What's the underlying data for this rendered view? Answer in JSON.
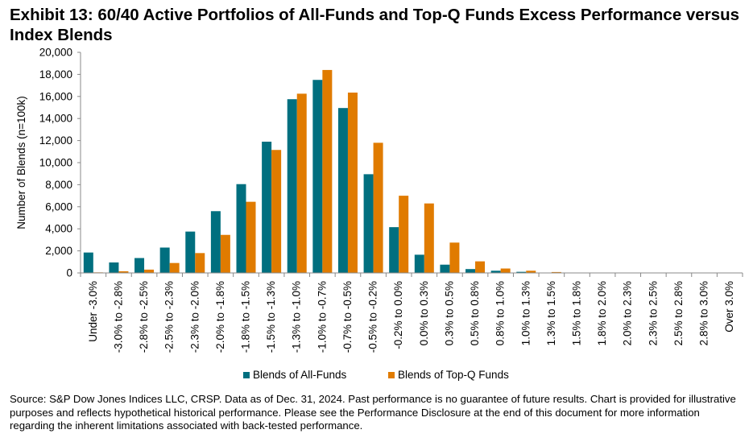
{
  "title": "Exhibit 13: 60/40 Active Portfolios of All-Funds and Top-Q Funds Excess Performance versus Index Blends",
  "source": "Source: S&P Dow Jones Indices LLC, CRSP.  Data as of Dec. 31, 2024.  Past performance is no guarantee of future results.  Chart is provided for illustrative purposes and reflects hypothetical historical performance.  Please see the Performance Disclosure at the end of this document for more information regarding the inherent limitations associated with back-tested performance.",
  "chart_data": {
    "type": "bar",
    "title": "Exhibit 13: 60/40 Active Portfolios of All-Funds and Top-Q Funds Excess Performance versus Index Blends",
    "ylabel": "Number of Blends (n=100k)",
    "xlabel": "",
    "ylim": [
      0,
      20000
    ],
    "yticks": [
      0,
      2000,
      4000,
      6000,
      8000,
      10000,
      12000,
      14000,
      16000,
      18000,
      20000
    ],
    "ytick_labels": [
      "0",
      "2,000",
      "4,000",
      "6,000",
      "8,000",
      "10,000",
      "12,000",
      "14,000",
      "16,000",
      "18,000",
      "20,000"
    ],
    "grid": false,
    "legend_position": "bottom",
    "categories": [
      "Under -3.0%",
      "-3.0% to -2.8%",
      "-2.8% to -2.5%",
      "-2.5% to -2.3%",
      "-2.3% to -2.0%",
      "-2.0% to -1.8%",
      "-1.8% to -1.5%",
      "-1.5% to -1.3%",
      "-1.3% to -1.0%",
      "-1.0% to -0.7%",
      "-0.7% to -0.5%",
      "-0.5% to -0.2%",
      "-0.2% to 0.0%",
      "0.0% to 0.3%",
      "0.3% to 0.5%",
      "0.5% to 0.8%",
      "0.8% to 1.0%",
      "1.0% to 1.3%",
      "1.3% to 1.5%",
      "1.5% to 1.8%",
      "1.8% to 2.0%",
      "2.0% to 2.3%",
      "2.3% to 2.5%",
      "2.5% to 2.8%",
      "2.8% to 3.0%",
      "Over 3.0%"
    ],
    "series": [
      {
        "name": "Blends of All-Funds",
        "color": "#006f7f",
        "values": [
          1850,
          950,
          1350,
          2300,
          3750,
          5600,
          8050,
          11900,
          15750,
          17500,
          14950,
          8950,
          4150,
          1650,
          750,
          350,
          200,
          100,
          30,
          10,
          0,
          0,
          0,
          0,
          0,
          0
        ]
      },
      {
        "name": "Blends of Top-Q Funds",
        "color": "#e07b00",
        "values": [
          50,
          150,
          300,
          900,
          1800,
          3450,
          6450,
          11150,
          16250,
          18400,
          16350,
          11800,
          7000,
          6300,
          2750,
          1050,
          400,
          200,
          80,
          30,
          10,
          10,
          0,
          0,
          0,
          0
        ]
      }
    ]
  }
}
